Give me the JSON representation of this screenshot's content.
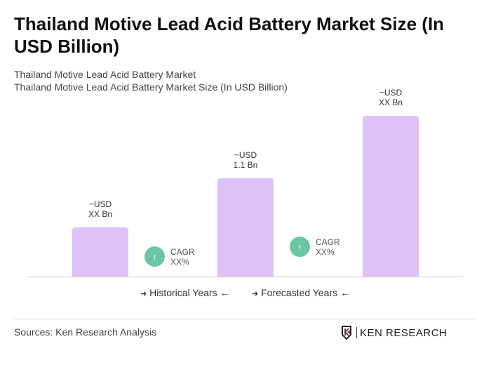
{
  "title": "Thailand Motive Lead Acid Battery Market Size (In USD Billion)",
  "subtitle1": "Thailand Motive Lead Acid Battery Market",
  "subtitle2": "Thailand Motive Lead Acid Battery Market Size (In USD Billion)",
  "chart_data": {
    "type": "bar",
    "title": "Thailand Motive Lead Acid Battery Market Size (In USD Billion)",
    "values": [
      0.55,
      1.1,
      1.8
    ],
    "data_labels": [
      [
        "~USD",
        "XX Bn"
      ],
      [
        "~USD",
        "1.1 Bn"
      ],
      [
        "~USD",
        "XX Bn"
      ]
    ],
    "bar_color": "#dcc2f6",
    "cagr": [
      {
        "label": "CAGR",
        "value": "XX%"
      },
      {
        "label": "CAGR",
        "value": "XX%"
      }
    ],
    "legend": [
      "Historical Years",
      "Forecasted Years"
    ],
    "grid": false
  },
  "cagr_color": "#6cc6a2",
  "legend_arrow_right": "➜",
  "legend_arrow_left": "←",
  "sources": "Sources: Ken Research Analysis",
  "logo_text": "KEN RESEARCH"
}
